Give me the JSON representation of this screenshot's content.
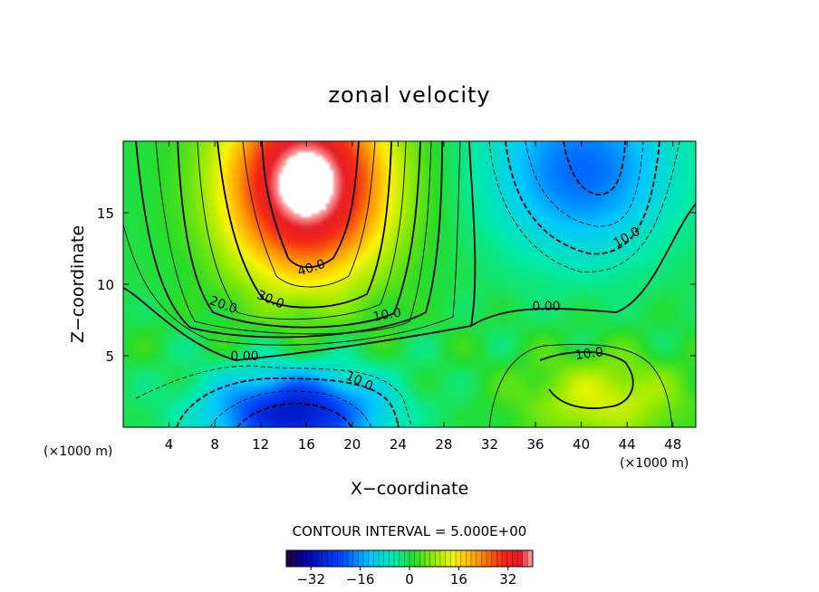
{
  "chart_data": {
    "type": "heatmap",
    "title": "zonal velocity",
    "xlabel": "X−coordinate",
    "ylabel": "Z−coordinate",
    "x_unit": "(×1000 m)",
    "x_unit_right": "(×1000 m)",
    "xlim": [
      0,
      50
    ],
    "ylim": [
      0,
      20
    ],
    "x_ticks": [
      4,
      8,
      12,
      16,
      20,
      24,
      28,
      32,
      36,
      40,
      44,
      48
    ],
    "y_ticks": [
      5,
      10,
      15
    ],
    "color_range": [
      -40,
      40
    ],
    "contour_interval_text": "CONTOUR INTERVAL = 5.000E+00",
    "colorbar_ticks": [
      "−32",
      "−16",
      "0",
      "16",
      "32"
    ],
    "colorbar_tick_values": [
      -32,
      -16,
      0,
      16,
      32
    ],
    "contour_labels": [
      "40.0",
      "30.0",
      "20.0",
      "10.0",
      "0.00",
      "10.0",
      "0.00",
      "10.0",
      "10.0"
    ],
    "grid": false,
    "features": [
      {
        "name": "positive jet core",
        "x": 16,
        "z": 17,
        "value": 45
      },
      {
        "name": "negative lower core",
        "x": 15,
        "z": 1,
        "value": -30
      },
      {
        "name": "negative upper-right core",
        "x": 40,
        "z": 18,
        "value": -20
      },
      {
        "name": "positive lower-right region",
        "x": 42,
        "z": 2,
        "value": 12
      }
    ]
  }
}
